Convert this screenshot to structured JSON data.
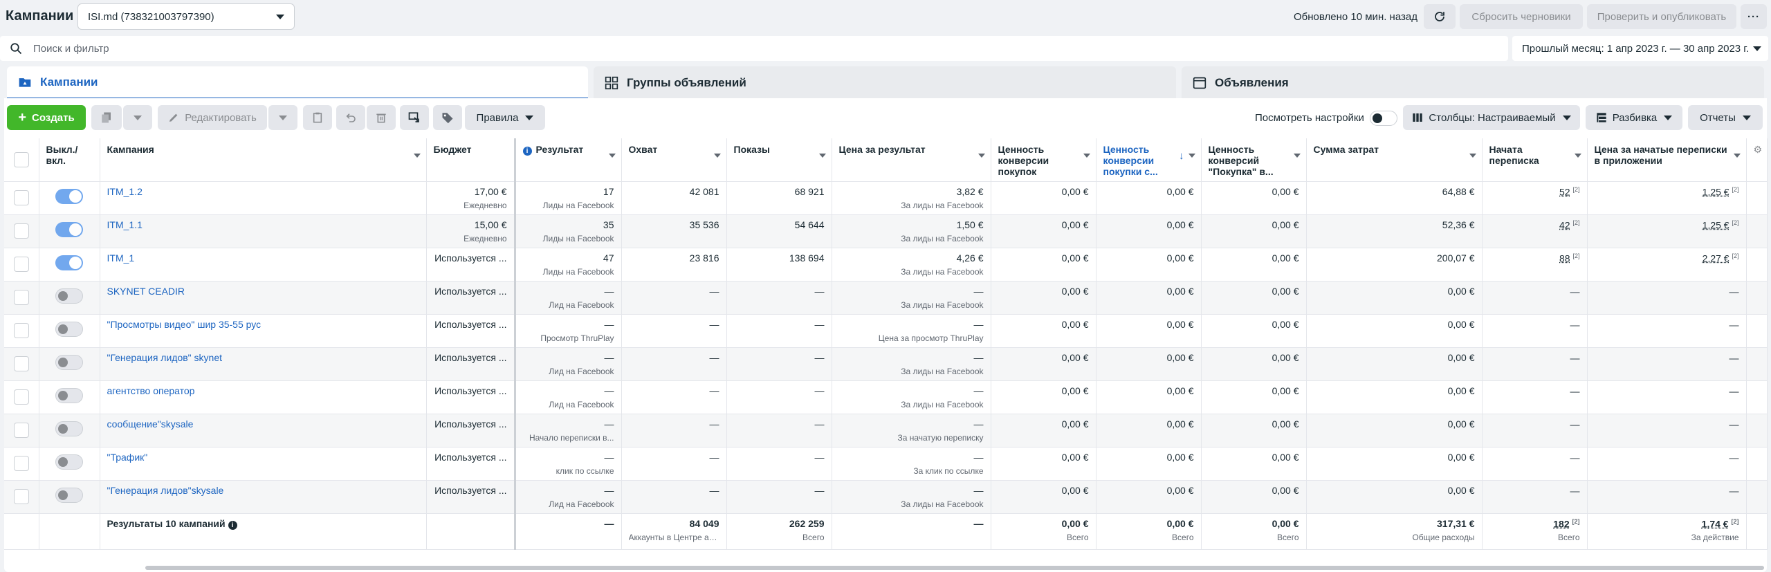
{
  "header": {
    "title": "Кампании",
    "account": "ISI.md (738321003797390)",
    "updated": "Обновлено 10 мин. назад",
    "discard_label": "Сбросить черновики",
    "publish_label": "Проверить и опубликовать",
    "more_label": "···"
  },
  "search": {
    "placeholder": "Поиск и фильтр",
    "date_range": "Прошлый месяц: 1 апр 2023 г. — 30 апр 2023 г."
  },
  "tabs": [
    {
      "label": "Кампании"
    },
    {
      "label": "Группы объявлений"
    },
    {
      "label": "Объявления"
    }
  ],
  "toolbar": {
    "create_label": "Создать",
    "edit_label": "Редактировать",
    "rules_label": "Правила",
    "view_settings": "Посмотреть настройки",
    "columns_label": "Столбцы: Настраиваемый",
    "breakdown_label": "Разбивка",
    "reports_label": "Отчеты"
  },
  "colors": {
    "accent": "#1d65c1",
    "create_green": "#42b72a"
  },
  "columns": {
    "onoff": "Выкл./ вкл.",
    "campaign": "Кампания",
    "budget": "Бюджет",
    "result": "Результат",
    "reach": "Охват",
    "impressions": "Показы",
    "cost_per_result": "Цена за результат",
    "purchase_value": "Ценность конверсии покупок",
    "purchase_value2": "Ценность конверсии покупки с...",
    "purchase_conv_value": "Ценность конверсий \"Покупка\" в...",
    "spend": "Сумма затрат",
    "msg_started": "Начата переписка",
    "cost_msg_started": "Цена за начатые переписки в приложении"
  },
  "rows": [
    {
      "on": true,
      "name": "ITM_1.2",
      "budget": "17,00 €",
      "budget_sub": "Ежедневно",
      "result": "17",
      "result_sub": "Лиды на Facebook",
      "reach": "42 081",
      "impressions": "68 921",
      "cpr": "3,82 €",
      "cpr_sub": "За лиды на Facebook",
      "v1": "0,00 €",
      "v2": "0,00 €",
      "v3": "0,00 €",
      "spend": "64,88 €",
      "msg": "52",
      "msg_sup": "[2]",
      "cmsg": "1,25 €",
      "cmsg_sup": "[2]"
    },
    {
      "on": true,
      "name": "ITM_1.1",
      "budget": "15,00 €",
      "budget_sub": "Ежедневно",
      "result": "35",
      "result_sub": "Лиды на Facebook",
      "reach": "35 536",
      "impressions": "54 644",
      "cpr": "1,50 €",
      "cpr_sub": "За лиды на Facebook",
      "v1": "0,00 €",
      "v2": "0,00 €",
      "v3": "0,00 €",
      "spend": "52,36 €",
      "msg": "42",
      "msg_sup": "[2]",
      "cmsg": "1,25 €",
      "cmsg_sup": "[2]"
    },
    {
      "on": true,
      "name": "ITM_1",
      "budget": "Используется ...",
      "budget_sub": "",
      "result": "47",
      "result_sub": "Лиды на Facebook",
      "reach": "23 816",
      "impressions": "138 694",
      "cpr": "4,26 €",
      "cpr_sub": "За лиды на Facebook",
      "v1": "0,00 €",
      "v2": "0,00 €",
      "v3": "0,00 €",
      "spend": "200,07 €",
      "msg": "88",
      "msg_sup": "[2]",
      "cmsg": "2,27 €",
      "cmsg_sup": "[2]"
    },
    {
      "on": false,
      "name": "SKYNET CEADIR",
      "budget": "Используется ...",
      "budget_sub": "",
      "result": "—",
      "result_sub": "Лид на Facebook",
      "reach": "—",
      "impressions": "—",
      "cpr": "—",
      "cpr_sub": "За лиды на Facebook",
      "v1": "0,00 €",
      "v2": "0,00 €",
      "v3": "0,00 €",
      "spend": "0,00 €",
      "msg": "—",
      "msg_sup": "",
      "cmsg": "—",
      "cmsg_sup": ""
    },
    {
      "on": false,
      "name": "\"Просмотры видео\" шир 35-55 рус",
      "budget": "Используется ...",
      "budget_sub": "",
      "result": "—",
      "result_sub": "Просмотр ThruPlay",
      "reach": "—",
      "impressions": "—",
      "cpr": "—",
      "cpr_sub": "Цена за просмотр ThruPlay",
      "v1": "0,00 €",
      "v2": "0,00 €",
      "v3": "0,00 €",
      "spend": "0,00 €",
      "msg": "—",
      "msg_sup": "",
      "cmsg": "—",
      "cmsg_sup": ""
    },
    {
      "on": false,
      "name": "\"Генерация лидов\" skynet",
      "budget": "Используется ...",
      "budget_sub": "",
      "result": "—",
      "result_sub": "Лид на Facebook",
      "reach": "—",
      "impressions": "—",
      "cpr": "—",
      "cpr_sub": "За лиды на Facebook",
      "v1": "0,00 €",
      "v2": "0,00 €",
      "v3": "0,00 €",
      "spend": "0,00 €",
      "msg": "—",
      "msg_sup": "",
      "cmsg": "—",
      "cmsg_sup": ""
    },
    {
      "on": false,
      "name": "агентство оператор",
      "budget": "Используется ...",
      "budget_sub": "",
      "result": "—",
      "result_sub": "Лид на Facebook",
      "reach": "—",
      "impressions": "—",
      "cpr": "—",
      "cpr_sub": "За лиды на Facebook",
      "v1": "0,00 €",
      "v2": "0,00 €",
      "v3": "0,00 €",
      "spend": "0,00 €",
      "msg": "—",
      "msg_sup": "",
      "cmsg": "—",
      "cmsg_sup": ""
    },
    {
      "on": false,
      "name": "сообщение\"skysale",
      "budget": "Используется ...",
      "budget_sub": "",
      "result": "—",
      "result_sub": "Начало переписки в...",
      "reach": "—",
      "impressions": "—",
      "cpr": "—",
      "cpr_sub": "За начатую переписку",
      "v1": "0,00 €",
      "v2": "0,00 €",
      "v3": "0,00 €",
      "spend": "0,00 €",
      "msg": "—",
      "msg_sup": "",
      "cmsg": "—",
      "cmsg_sup": ""
    },
    {
      "on": false,
      "name": "\"Трафик\"",
      "budget": "Используется ...",
      "budget_sub": "",
      "result": "—",
      "result_sub": "клик по ссылке",
      "reach": "—",
      "impressions": "—",
      "cpr": "—",
      "cpr_sub": "За клик по ссылке",
      "v1": "0,00 €",
      "v2": "0,00 €",
      "v3": "0,00 €",
      "spend": "0,00 €",
      "msg": "—",
      "msg_sup": "",
      "cmsg": "—",
      "cmsg_sup": ""
    },
    {
      "on": false,
      "name": "\"Генерация лидов\"skysale",
      "budget": "Используется ...",
      "budget_sub": "",
      "result": "—",
      "result_sub": "Лид на Facebook",
      "reach": "—",
      "impressions": "—",
      "cpr": "—",
      "cpr_sub": "За лиды на Facebook",
      "v1": "0,00 €",
      "v2": "0,00 €",
      "v3": "0,00 €",
      "spend": "0,00 €",
      "msg": "—",
      "msg_sup": "",
      "cmsg": "—",
      "cmsg_sup": ""
    }
  ],
  "totals": {
    "label": "Результаты 10 кампаний",
    "result": "—",
    "reach": "84 049",
    "reach_sub": "Аккаунты в Центре ак...",
    "impressions": "262 259",
    "impressions_sub": "Всего",
    "cpr": "—",
    "v1": "0,00 €",
    "v1_sub": "Всего",
    "v2": "0,00 €",
    "v2_sub": "Всего",
    "v3": "0,00 €",
    "v3_sub": "Всего",
    "spend": "317,31 €",
    "spend_sub": "Общие расходы",
    "msg": "182",
    "msg_sup": "[2]",
    "msg_sub": "Всего",
    "cmsg": "1,74 €",
    "cmsg_sup": "[2]",
    "cmsg_sub": "За действие"
  }
}
